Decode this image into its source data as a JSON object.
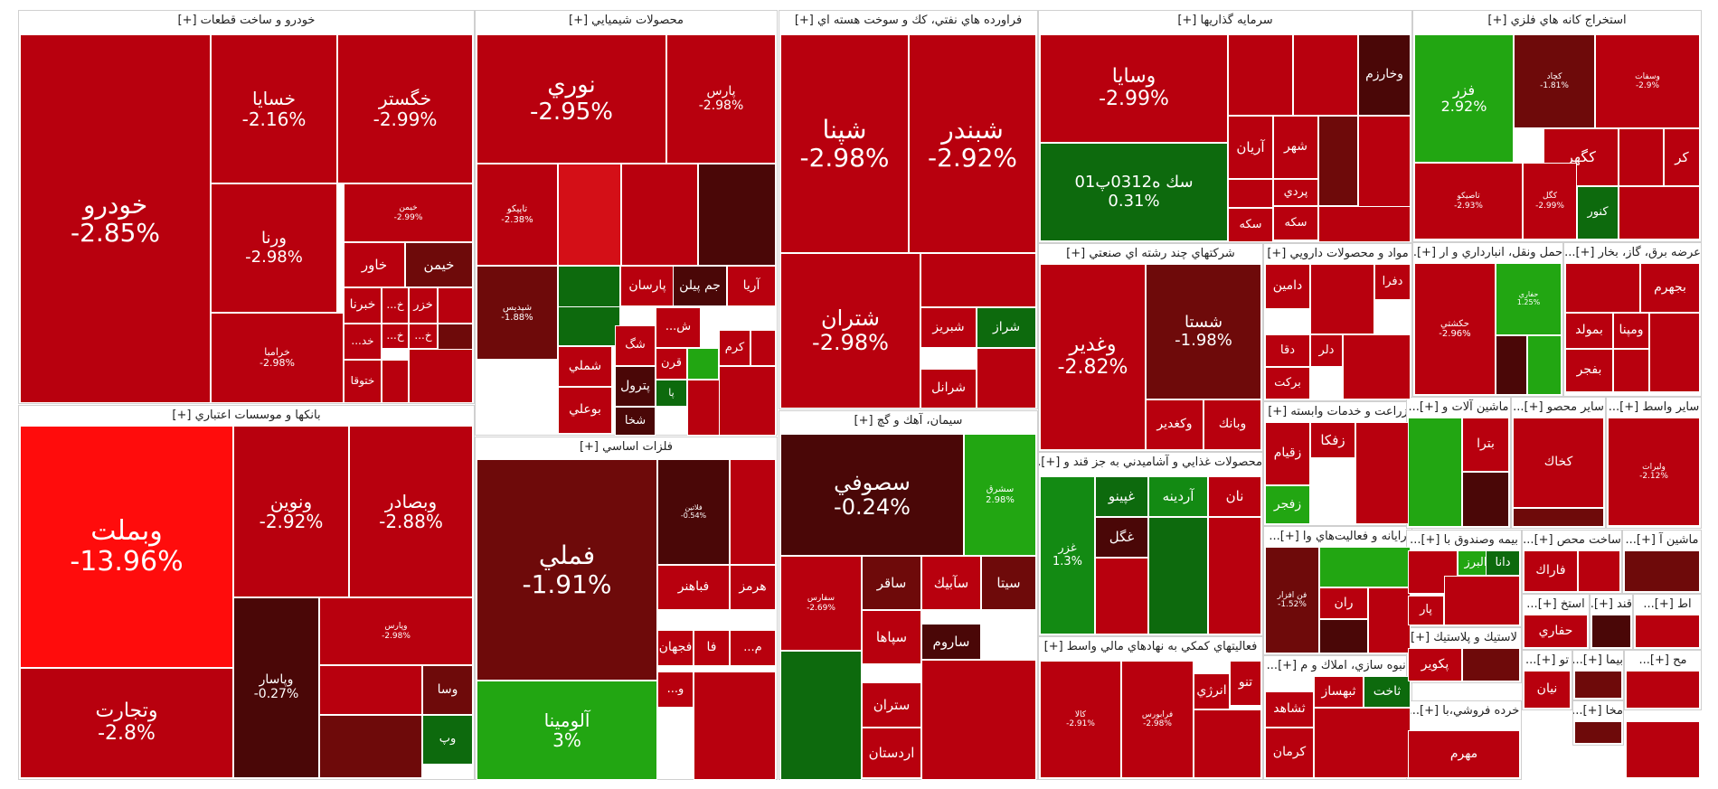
{
  "chart_data": {
    "type": "treemap",
    "colors": {
      "deep_red": "#b8000e",
      "red": "#a30c12",
      "dark_red": "#6e0a0a",
      "darkest_red": "#4a0707",
      "bright_red": "#ff0c0c",
      "light_red": "#d40f17",
      "green": "#22a612",
      "dark_green": "#0d6a0d",
      "mid_green": "#138a13"
    },
    "sectors": [
      {
        "name": "خودرو و ساخت قطعات [+]",
        "stocks": [
          {
            "name": "خودرو",
            "change": "-2.85%"
          },
          {
            "name": "خسايا",
            "change": "-2.16%"
          },
          {
            "name": "خگستر",
            "change": "-2.99%"
          },
          {
            "name": "ورنا",
            "change": "-2.98%"
          },
          {
            "name": "خيمن",
            "change": "-2.99%"
          },
          {
            "name": "خاور",
            "change": ""
          },
          {
            "name": "خيمن",
            "change": ""
          },
          {
            "name": "خبرنا",
            "change": ""
          },
          {
            "name": "خ...",
            "change": ""
          },
          {
            "name": "خزر",
            "change": ""
          },
          {
            "name": "خرامبا",
            "change": "-2.98%"
          },
          {
            "name": "خ...",
            "change": ""
          },
          {
            "name": "خ...",
            "change": ""
          },
          {
            "name": "خد...",
            "change": ""
          },
          {
            "name": "ختوقا",
            "change": ""
          }
        ]
      },
      {
        "name": "بانكها و موسسات اعتباري [+]",
        "stocks": [
          {
            "name": "وبملت",
            "change": "-13.96%"
          },
          {
            "name": "ونوين",
            "change": "-2.92%"
          },
          {
            "name": "وبصادر",
            "change": "-2.88%"
          },
          {
            "name": "وتجارت",
            "change": "-2.8%"
          },
          {
            "name": "وپاسار",
            "change": "-0.27%"
          },
          {
            "name": "وپارس",
            "change": "-2.98%"
          },
          {
            "name": "وسا",
            "change": ""
          },
          {
            "name": "وپ",
            "change": ""
          }
        ]
      },
      {
        "name": "محصولات شيميايي [+]",
        "stocks": [
          {
            "name": "نوري",
            "change": "-2.95%"
          },
          {
            "name": "پارس",
            "change": "-2.98%"
          },
          {
            "name": "تاپيكو",
            "change": "-2.38%"
          },
          {
            "name": "شپديس",
            "change": "-1.88%"
          },
          {
            "name": "پارسان",
            "change": ""
          },
          {
            "name": "جم پيلن",
            "change": ""
          },
          {
            "name": "آريا",
            "change": ""
          },
          {
            "name": "شملي",
            "change": ""
          },
          {
            "name": "بوعلي",
            "change": ""
          },
          {
            "name": "پترول",
            "change": ""
          },
          {
            "name": "قرن",
            "change": ""
          },
          {
            "name": "كرم",
            "change": ""
          },
          {
            "name": "شخا",
            "change": ""
          },
          {
            "name": "شگ",
            "change": ""
          },
          {
            "name": "ش...",
            "change": ""
          },
          {
            "name": "پا",
            "change": ""
          }
        ]
      },
      {
        "name": "فلزات اساسي [+]",
        "stocks": [
          {
            "name": "فملي",
            "change": "-1.91%"
          },
          {
            "name": "آلومينا",
            "change": "3%"
          },
          {
            "name": "فباهنر",
            "change": ""
          },
          {
            "name": "هرمز",
            "change": ""
          },
          {
            "name": "فجهان",
            "change": ""
          },
          {
            "name": "فا",
            "change": ""
          },
          {
            "name": "م...",
            "change": ""
          },
          {
            "name": "و...",
            "change": ""
          },
          {
            "name": "فلاتين",
            "change": "-0.54%"
          }
        ]
      },
      {
        "name": "فراورده هاي نفتي، كك و سوخت هسته اي [+]",
        "stocks": [
          {
            "name": "شپنا",
            "change": "-2.98%"
          },
          {
            "name": "شبندر",
            "change": "-2.92%"
          },
          {
            "name": "شتران",
            "change": "-2.98%"
          },
          {
            "name": "شبريز",
            "change": ""
          },
          {
            "name": "شراز",
            "change": ""
          },
          {
            "name": "شرانل",
            "change": ""
          }
        ]
      },
      {
        "name": "سيمان، آهك و گچ [+]",
        "stocks": [
          {
            "name": "سصوفي",
            "change": "-0.24%"
          },
          {
            "name": "سشرق",
            "change": "2.98%"
          },
          {
            "name": "سفارس",
            "change": "-2.69%"
          },
          {
            "name": "ساقر",
            "change": ""
          },
          {
            "name": "سآبيك",
            "change": ""
          },
          {
            "name": "سيتا",
            "change": ""
          },
          {
            "name": "سپاها",
            "change": ""
          },
          {
            "name": "ساروم",
            "change": ""
          },
          {
            "name": "ستران",
            "change": ""
          },
          {
            "name": "اردستان",
            "change": ""
          }
        ]
      },
      {
        "name": "سرمايه گذاريها [+]",
        "stocks": [
          {
            "name": "وسايا",
            "change": "-2.99%"
          },
          {
            "name": "سك ه0312پ01",
            "change": "0.31%"
          },
          {
            "name": "وخارزم",
            "change": ""
          },
          {
            "name": "آريان",
            "change": ""
          },
          {
            "name": "شهر",
            "change": ""
          },
          {
            "name": "پردي",
            "change": ""
          },
          {
            "name": "سكه",
            "change": ""
          },
          {
            "name": "سكه",
            "change": ""
          }
        ]
      },
      {
        "name": "استخراج كانه هاي فلزي [+]",
        "stocks": [
          {
            "name": "فزر",
            "change": "2.92%"
          },
          {
            "name": "كچاد",
            "change": "-1.81%"
          },
          {
            "name": "وسفات",
            "change": "-2.9%"
          },
          {
            "name": "كگهر",
            "change": ""
          },
          {
            "name": "كر",
            "change": ""
          },
          {
            "name": "تاصيكو",
            "change": "-2.93%"
          },
          {
            "name": "كگل",
            "change": "-2.99%"
          },
          {
            "name": "كنور",
            "change": ""
          }
        ]
      },
      {
        "name": "شركتهاي چند رشته اي صنعتي [+]",
        "stocks": [
          {
            "name": "وغدير",
            "change": "-2.82%"
          },
          {
            "name": "شستا",
            "change": "-1.98%"
          },
          {
            "name": "وكغدير",
            "change": ""
          },
          {
            "name": "وبانك",
            "change": ""
          }
        ]
      },
      {
        "name": "مواد و محصولات دارويي [+]",
        "stocks": [
          {
            "name": "دامين",
            "change": ""
          },
          {
            "name": "دقا",
            "change": ""
          },
          {
            "name": "دلر",
            "change": ""
          },
          {
            "name": "بركت",
            "change": ""
          },
          {
            "name": "دفرا",
            "change": ""
          }
        ]
      },
      {
        "name": "محصولات غذايي و آشاميدني به جز قند و [+]...",
        "stocks": [
          {
            "name": "غزر",
            "change": "1.3%"
          },
          {
            "name": "غپينو",
            "change": ""
          },
          {
            "name": "آردينه",
            "change": ""
          },
          {
            "name": "نان",
            "change": ""
          },
          {
            "name": "غگل",
            "change": ""
          }
        ]
      },
      {
        "name": "فعاليتهاي كمكي به نهادهاي مالي واسط [+]",
        "stocks": [
          {
            "name": "كالا",
            "change": "-2.91%"
          },
          {
            "name": "فرابورس",
            "change": "-2.98%"
          },
          {
            "name": "انرژي",
            "change": ""
          },
          {
            "name": "تنو",
            "change": ""
          }
        ]
      },
      {
        "name": "زراعت و خدمات وابسته [+]",
        "stocks": [
          {
            "name": "زفكا",
            "change": ""
          },
          {
            "name": "زقيام",
            "change": ""
          },
          {
            "name": "زفجر",
            "change": ""
          }
        ]
      },
      {
        "name": "رايانه و فعاليت‌هاي وا [+]...",
        "stocks": [
          {
            "name": "فن افزار",
            "change": "-1.52%"
          },
          {
            "name": "ران",
            "change": ""
          }
        ]
      },
      {
        "name": "انبوه سازي، املاك و م [+]...",
        "stocks": [
          {
            "name": "ثاخت",
            "change": ""
          },
          {
            "name": "ثبهساز",
            "change": ""
          },
          {
            "name": "ثشاهد",
            "change": ""
          },
          {
            "name": "كرمان",
            "change": ""
          }
        ]
      },
      {
        "name": "حمل ونقل، انبارداري و ار [+]...",
        "stocks": [
          {
            "name": "حكشتي",
            "change": "-2.96%"
          },
          {
            "name": "حفاري",
            "change": "1.25%"
          }
        ]
      },
      {
        "name": "عرضه برق، گاز، بخار [+]...",
        "stocks": [
          {
            "name": "بجهرم",
            "change": ""
          },
          {
            "name": "بمولد",
            "change": ""
          },
          {
            "name": "ومپنا",
            "change": ""
          },
          {
            "name": "بفجر",
            "change": ""
          }
        ]
      },
      {
        "name": "ماشين آلات و [+]...",
        "stocks": [
          {
            "name": "بترا",
            "change": ""
          }
        ]
      },
      {
        "name": "ساير محصو [+]...",
        "stocks": [
          {
            "name": "كخاك",
            "change": ""
          }
        ]
      },
      {
        "name": "ساير واسط [+]...",
        "stocks": [
          {
            "name": "وليرات",
            "change": "-2.12%"
          }
        ]
      },
      {
        "name": "بيمه وصندوق با [+]...",
        "stocks": [
          {
            "name": "البرز",
            "change": ""
          },
          {
            "name": "دانا",
            "change": ""
          },
          {
            "name": "پار",
            "change": ""
          }
        ]
      },
      {
        "name": "ساخت محص [+]...",
        "stocks": [
          {
            "name": "فاراك",
            "change": ""
          }
        ]
      },
      {
        "name": "ماشين آ [+]...",
        "stocks": []
      },
      {
        "name": "استخ [+]...",
        "stocks": [
          {
            "name": "حفاري",
            "change": ""
          }
        ]
      },
      {
        "name": "لاستيك و پلاستيك [+]",
        "stocks": [
          {
            "name": "پكوير",
            "change": ""
          }
        ]
      },
      {
        "name": "تو [+]...",
        "stocks": [
          {
            "name": "نيان",
            "change": ""
          }
        ]
      },
      {
        "name": "بيما [+]...",
        "stocks": []
      },
      {
        "name": "خرده فروشي،با [+]...",
        "stocks": [
          {
            "name": "مهرم",
            "change": ""
          }
        ]
      },
      {
        "name": "قند [+]...",
        "stocks": []
      },
      {
        "name": "اط [+]...",
        "stocks": []
      },
      {
        "name": "مخا [+]...",
        "stocks": []
      },
      {
        "name": "مح [+]...",
        "stocks": []
      }
    ]
  }
}
